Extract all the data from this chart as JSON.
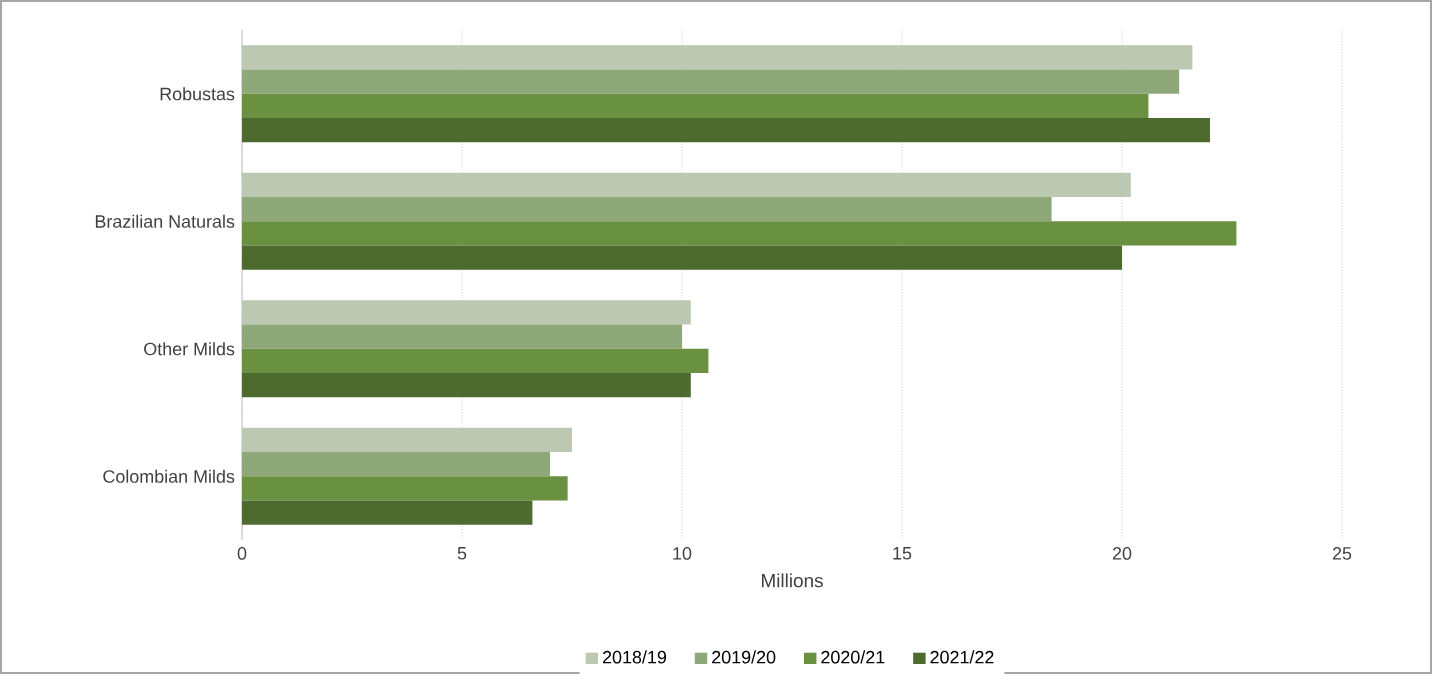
{
  "chart_data": {
    "type": "bar",
    "orientation": "horizontal",
    "xlabel": "Millions",
    "categories": [
      "Robustas",
      "Brazilian Naturals",
      "Other Milds",
      "Colombian Milds"
    ],
    "series": [
      {
        "name": "2018/19",
        "color": "#bcc8b2",
        "values": [
          21.6,
          20.2,
          10.2,
          7.5
        ]
      },
      {
        "name": "2019/20",
        "color": "#8fa87a",
        "values": [
          21.3,
          18.4,
          10.0,
          7.0
        ]
      },
      {
        "name": "2020/21",
        "color": "#6a9140",
        "values": [
          20.6,
          22.6,
          10.6,
          7.4
        ]
      },
      {
        "name": "2021/22",
        "color": "#4e6b2f",
        "values": [
          22.0,
          20.0,
          10.2,
          6.6
        ]
      }
    ],
    "xlim": [
      0,
      25
    ],
    "xticks": [
      0,
      5,
      10,
      15,
      20,
      25
    ],
    "grid": "x",
    "legend": "bottom"
  }
}
